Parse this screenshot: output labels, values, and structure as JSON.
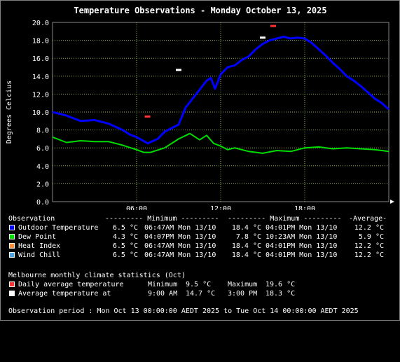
{
  "chart_data": {
    "type": "line",
    "title": "Temperature Observations - Monday October 13, 2025",
    "ylabel": "Degrees Celcius",
    "xlabel": "",
    "x_ticks": [
      "06:00",
      "12:00",
      "18:00"
    ],
    "y_ticks": [
      "0.0",
      "2.0",
      "4.0",
      "6.0",
      "8.0",
      "10.0",
      "12.0",
      "14.0",
      "16.0",
      "18.0",
      "20.0"
    ],
    "ylim": [
      0,
      20
    ],
    "xlim_hours": [
      0,
      24
    ],
    "grid": true,
    "series": [
      {
        "name": "Outdoor Temperature",
        "color": "#0000ff",
        "x": [
          0,
          1,
          2,
          3,
          4,
          5,
          5.5,
          6,
          6.8,
          7.5,
          8,
          8.5,
          9,
          9.5,
          10,
          10.5,
          11,
          11.3,
          11.6,
          12,
          12.5,
          13,
          13.5,
          14,
          14.5,
          15,
          15.5,
          16,
          16.5,
          17,
          17.5,
          18,
          18.5,
          19,
          19.5,
          20,
          20.5,
          21,
          21.5,
          22,
          22.5,
          23,
          23.5,
          24
        ],
        "values": [
          10.0,
          9.6,
          9.0,
          9.1,
          8.7,
          8.0,
          7.5,
          7.2,
          6.5,
          7.0,
          7.8,
          8.2,
          8.6,
          10.5,
          11.5,
          12.5,
          13.5,
          13.8,
          12.6,
          14.2,
          15.0,
          15.2,
          15.8,
          16.2,
          17.0,
          17.6,
          18.0,
          18.2,
          18.4,
          18.2,
          18.3,
          18.2,
          17.7,
          17.0,
          16.3,
          15.5,
          14.8,
          14.0,
          13.5,
          12.9,
          12.2,
          11.5,
          11.0,
          10.3
        ]
      },
      {
        "name": "Dew Point",
        "color": "#00dd00",
        "x": [
          0,
          1,
          2,
          3,
          4,
          5,
          6,
          6.5,
          7,
          8,
          9,
          9.8,
          10.5,
          11,
          11.5,
          12,
          12.5,
          13,
          14,
          15,
          16,
          17,
          18,
          19,
          20,
          21,
          22,
          23,
          24
        ],
        "values": [
          7.2,
          6.6,
          6.8,
          6.7,
          6.7,
          6.3,
          5.8,
          5.5,
          5.5,
          6.0,
          7.0,
          7.6,
          6.9,
          7.4,
          6.5,
          6.2,
          5.8,
          6.0,
          5.6,
          5.4,
          5.7,
          5.6,
          6.0,
          6.1,
          5.9,
          6.0,
          5.9,
          5.8,
          5.6
        ]
      }
    ],
    "markers": [
      {
        "name": "Daily average temperature min",
        "color": "#ff3333",
        "x": 6.78,
        "value": 9.5
      },
      {
        "name": "Daily average temperature max",
        "color": "#ff3333",
        "x": 15.75,
        "value": 19.6
      },
      {
        "name": "Average temperature at 09:00",
        "color": "#ffffff",
        "x": 9.0,
        "value": 14.7
      },
      {
        "name": "Average temperature at 15:00",
        "color": "#ffffff",
        "x": 15.0,
        "value": 18.3
      }
    ]
  },
  "legend": {
    "header": {
      "observation": "Observation",
      "minimum": "--------- Minimum ---------",
      "maximum": "--------- Maximum ---------",
      "average": "-Average-"
    },
    "rows": [
      {
        "name": "Outdoor Temperature",
        "color": "#0000ff",
        "min_val": "6.5 °C",
        "min_time": "06:47AM Mon 13/10",
        "max_val": "18.4 °C",
        "max_time": "04:01PM Mon 13/10",
        "avg": "12.2 °C"
      },
      {
        "name": "Dew Point",
        "color": "#00dd00",
        "min_val": "4.3 °C",
        "min_time": "04:07PM Mon 13/10",
        "max_val": "7.8 °C",
        "max_time": "10:23AM Mon 13/10",
        "avg": "5.9 °C"
      },
      {
        "name": "Heat Index",
        "color": "#ff8c3a",
        "min_val": "6.5 °C",
        "min_time": "06:47AM Mon 13/10",
        "max_val": "18.4 °C",
        "max_time": "04:01PM Mon 13/10",
        "avg": "12.2 °C"
      },
      {
        "name": "Wind Chill",
        "color": "#4ca6e6",
        "min_val": "6.5 °C",
        "min_time": "06:47AM Mon 13/10",
        "max_val": "18.4 °C",
        "max_time": "04:01PM Mon 13/10",
        "avg": "12.2 °C"
      }
    ]
  },
  "climate": {
    "title": "Melbourne monthly climate statistics (Oct)",
    "daily": {
      "label": "Daily average temperature",
      "color": "#ff3333",
      "min_label": "Minimum",
      "min_val": "9.5 °C",
      "max_label": "Maximum",
      "max_val": "19.6 °C"
    },
    "avg": {
      "label": "Average temperature at",
      "color": "#ffffff",
      "t1": "9:00 AM",
      "v1": "14.7 °C",
      "t2": "3:00 PM",
      "v2": "18.3 °C"
    }
  },
  "footer": "Observation period : Mon Oct 13 00:00:00 AEDT 2025 to Tue Oct 14 00:00:00 AEDT 2025"
}
